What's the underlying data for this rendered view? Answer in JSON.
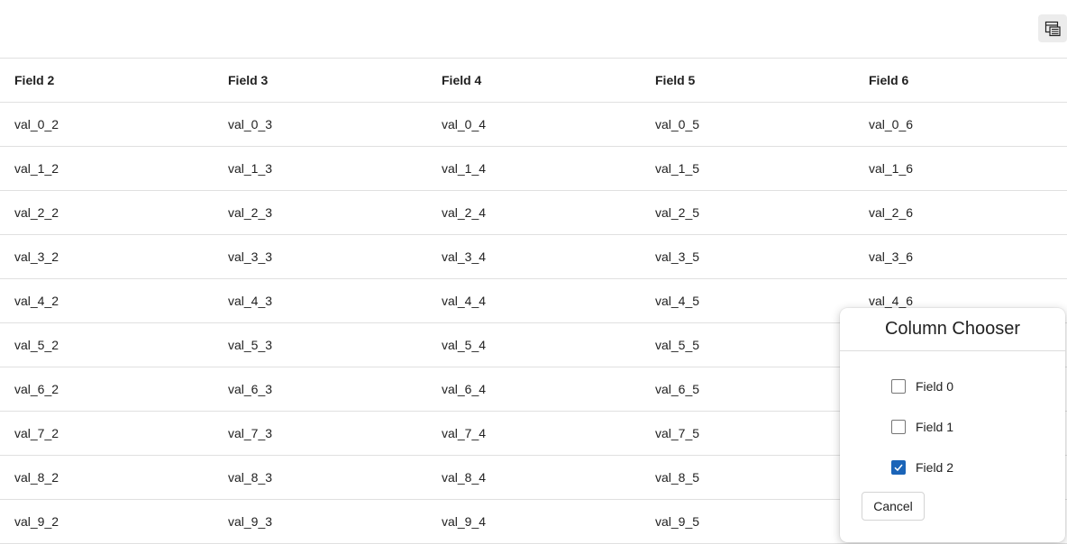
{
  "toolbar": {
    "icon": "column-chooser-icon"
  },
  "grid": {
    "columns": [
      "Field 2",
      "Field 3",
      "Field 4",
      "Field 5",
      "Field 6"
    ],
    "rows": [
      [
        "val_0_2",
        "val_0_3",
        "val_0_4",
        "val_0_5",
        "val_0_6"
      ],
      [
        "val_1_2",
        "val_1_3",
        "val_1_4",
        "val_1_5",
        "val_1_6"
      ],
      [
        "val_2_2",
        "val_2_3",
        "val_2_4",
        "val_2_5",
        "val_2_6"
      ],
      [
        "val_3_2",
        "val_3_3",
        "val_3_4",
        "val_3_5",
        "val_3_6"
      ],
      [
        "val_4_2",
        "val_4_3",
        "val_4_4",
        "val_4_5",
        "val_4_6"
      ],
      [
        "val_5_2",
        "val_5_3",
        "val_5_4",
        "val_5_5",
        ""
      ],
      [
        "val_6_2",
        "val_6_3",
        "val_6_4",
        "val_6_5",
        ""
      ],
      [
        "val_7_2",
        "val_7_3",
        "val_7_4",
        "val_7_5",
        ""
      ],
      [
        "val_8_2",
        "val_8_3",
        "val_8_4",
        "val_8_5",
        ""
      ],
      [
        "val_9_2",
        "val_9_3",
        "val_9_4",
        "val_9_5",
        ""
      ]
    ]
  },
  "column_chooser": {
    "title": "Column Chooser",
    "options": [
      {
        "label": "Field 0",
        "checked": false
      },
      {
        "label": "Field 1",
        "checked": false
      },
      {
        "label": "Field 2",
        "checked": true
      }
    ],
    "cancel_label": "Cancel",
    "accent_color": "#1a64b8"
  }
}
